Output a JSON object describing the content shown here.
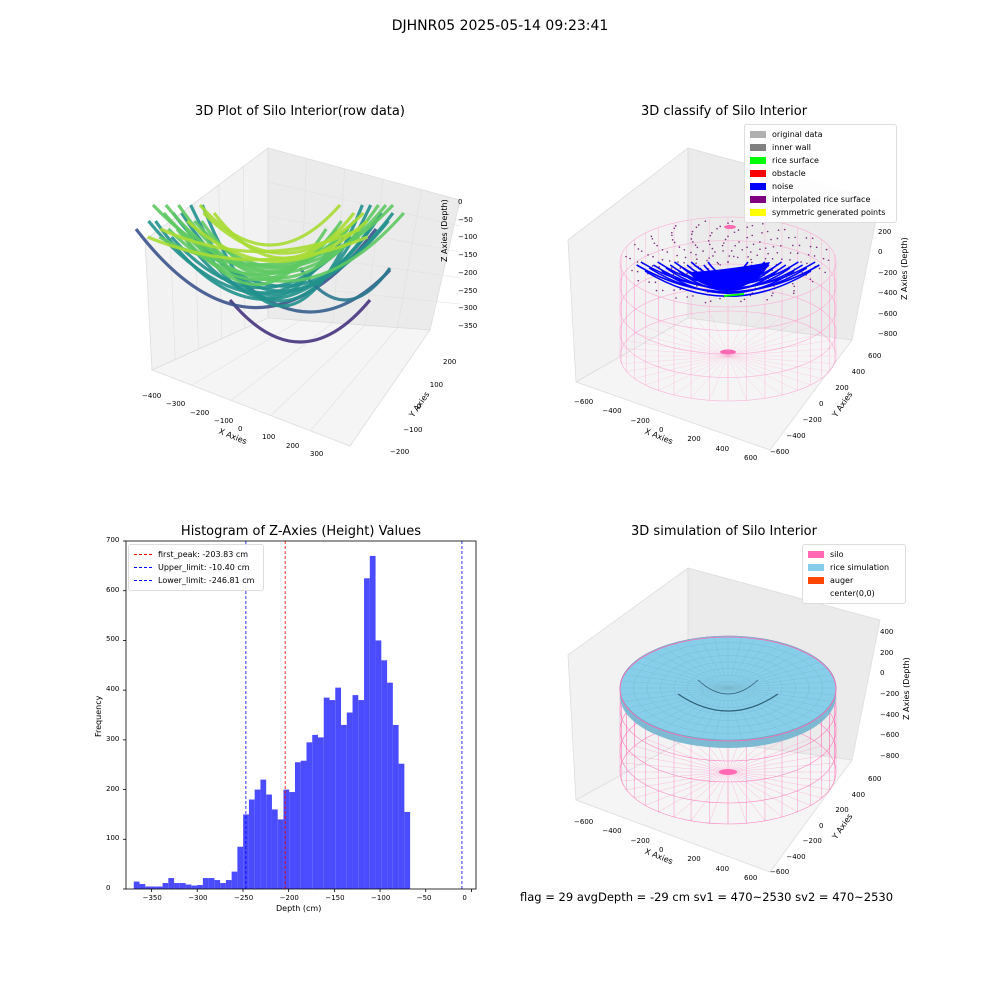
{
  "suptitle": "DJHNR05 2025-05-14 09:23:41",
  "footer": "flag = 29   avgDepth = -29 cm   sv1 = 470~2530  sv2 = 470~2530",
  "colors": {
    "hist_bar": "#4b4bff",
    "first_peak": "#ff0000",
    "limits": "#0000ff",
    "silo": "#ff69b4",
    "rice_sim": "#87ceeb",
    "auger": "#ff4500",
    "noise": "#0000ff",
    "rice_surface": "#00ff00",
    "inner_wall": "#808080",
    "original": "#b0b0b0",
    "obstacle": "#ff0000",
    "interp": "#800080",
    "symmetric": "#ffff00"
  },
  "chart_data": [
    {
      "type": "scatter",
      "title": "3D Plot of Silo Interior(row data)",
      "xlabel": "X Axies",
      "ylabel": "Y Axies",
      "zlabel": "Z Axies (Depth)",
      "x_ticks": [
        "−400",
        "−300",
        "−200",
        "−100",
        "0",
        "100",
        "200",
        "300"
      ],
      "y_ticks": [
        "−200",
        "−100",
        "0",
        "100",
        "200"
      ],
      "z_ticks": [
        "0",
        "−50",
        "−100",
        "−150",
        "−200",
        "−250",
        "−300",
        "−350"
      ],
      "xlim": [
        -400,
        300
      ],
      "ylim": [
        -200,
        200
      ],
      "zlim": [
        -370,
        0
      ],
      "colormap": "viridis"
    },
    {
      "type": "scatter",
      "title": "3D classify of Silo Interior",
      "xlabel": "X Axies",
      "ylabel": "Y Axies",
      "zlabel": "Z Axies (Depth)",
      "x_ticks": [
        "−600",
        "−400",
        "−200",
        "0",
        "200",
        "400",
        "600"
      ],
      "y_ticks": [
        "−600",
        "−400",
        "−200",
        "0",
        "200",
        "400",
        "600"
      ],
      "z_ticks": [
        "200",
        "0",
        "−200",
        "−400",
        "−600",
        "−800"
      ],
      "legend": [
        "original data",
        "inner wall",
        "rice surface",
        "obstacle",
        "noise",
        "interpolated rice surface",
        "symmetric generated points"
      ],
      "legend_colors": [
        "#b0b0b0",
        "#808080",
        "#00ff00",
        "#ff0000",
        "#0000ff",
        "#800080",
        "#ffff00"
      ],
      "legend_position": "upper right"
    },
    {
      "type": "bar",
      "title": "Histogram of Z-Axies (Height) Values",
      "xlabel": "Depth (cm)",
      "ylabel": "Frequency",
      "xlim": [
        -378,
        5
      ],
      "ylim": [
        0,
        700
      ],
      "x_ticks": [
        -350,
        -300,
        -250,
        -200,
        -150,
        -100,
        -50,
        0
      ],
      "y_ticks": [
        0,
        100,
        200,
        300,
        400,
        500,
        600,
        700
      ],
      "bin_start": -369.5,
      "bin_width": 6.3,
      "values": [
        15,
        10,
        5,
        5,
        5,
        12,
        22,
        12,
        12,
        9,
        7,
        8,
        22,
        22,
        18,
        12,
        18,
        35,
        85,
        150,
        180,
        200,
        220,
        190,
        160,
        140,
        200,
        195,
        255,
        258,
        295,
        310,
        305,
        385,
        380,
        405,
        330,
        355,
        390,
        380,
        625,
        670,
        500,
        460,
        415,
        330,
        252,
        155
      ],
      "lines": [
        {
          "label": "first_peak: -203.83 cm",
          "x": -203.83,
          "color": "#ff0000"
        },
        {
          "label": "Upper_limit: -10.40 cm",
          "x": -10.4,
          "color": "#0000ff"
        },
        {
          "label": "Lower_limit: -246.81 cm",
          "x": -246.81,
          "color": "#0000ff"
        }
      ],
      "legend_position": "upper left"
    },
    {
      "type": "scatter",
      "title": "3D simulation of Silo Interior",
      "xlabel": "X Axies",
      "ylabel": "Y Axies",
      "zlabel": "Z Axies (Depth)",
      "x_ticks": [
        "−600",
        "−400",
        "−200",
        "0",
        "200",
        "400",
        "600"
      ],
      "y_ticks": [
        "−600",
        "−400",
        "−200",
        "0",
        "200",
        "400",
        "600"
      ],
      "z_ticks": [
        "400",
        "200",
        "0",
        "−200",
        "−400",
        "−600",
        "−800"
      ],
      "legend": [
        "silo",
        "rice simulation",
        "auger",
        "center(0,0)"
      ],
      "legend_colors": [
        "#ff69b4",
        "#87ceeb",
        "#ff4500",
        "#ffffff"
      ],
      "legend_position": "upper right"
    }
  ]
}
